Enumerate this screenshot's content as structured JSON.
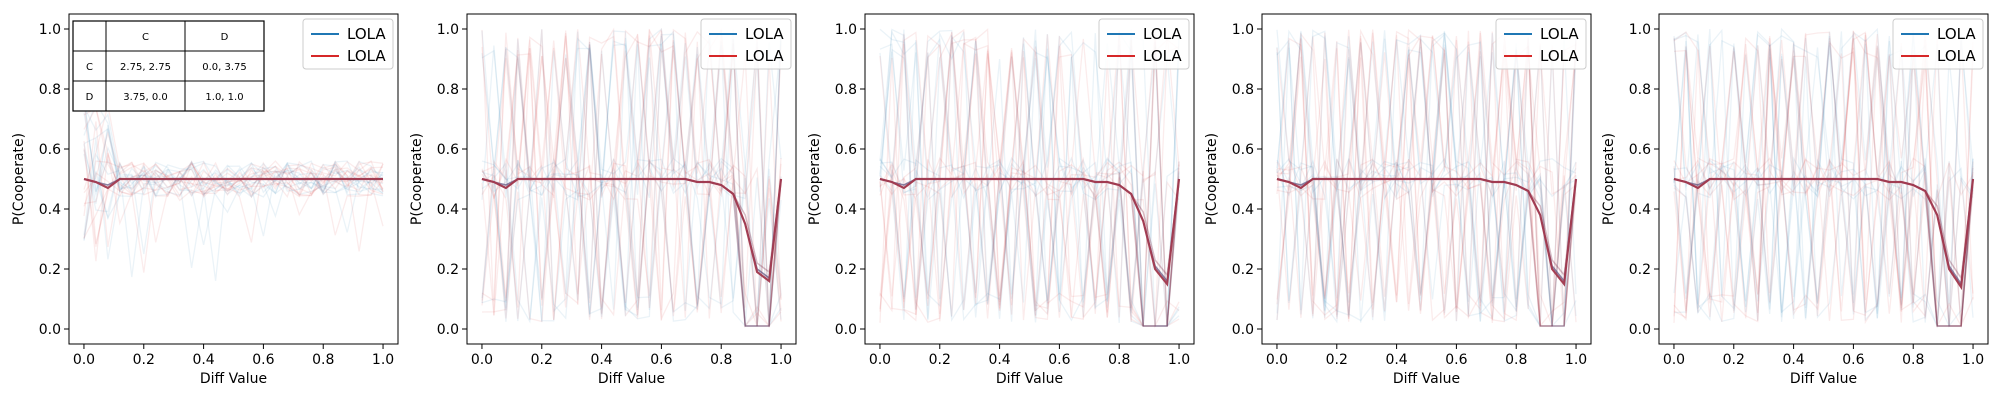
{
  "chart_data": [
    {
      "type": "line",
      "xlabel": "Diff Value",
      "ylabel": "P(Cooperate)",
      "xlim": [
        -0.05,
        1.05
      ],
      "ylim": [
        -0.05,
        1.05
      ],
      "x_ticks": [
        "0.0",
        "0.2",
        "0.4",
        "0.6",
        "0.8",
        "1.0"
      ],
      "y_ticks": [
        "0.0",
        "0.2",
        "0.4",
        "0.6",
        "0.8",
        "1.0"
      ],
      "legend": {
        "placement": "upper-right",
        "entries": [
          "LOLA",
          "LOLA"
        ]
      },
      "x": [
        0.0,
        0.04,
        0.08,
        0.12,
        0.16,
        0.2,
        0.24,
        0.28,
        0.32,
        0.36,
        0.4,
        0.44,
        0.48,
        0.52,
        0.56,
        0.6,
        0.64,
        0.68,
        0.72,
        0.76,
        0.8,
        0.84,
        0.88,
        0.92,
        0.96,
        1.0
      ],
      "series": [
        {
          "name": "LOLA",
          "color": "#1f77b4",
          "values": [
            0.5,
            0.49,
            0.48,
            0.5,
            0.5,
            0.5,
            0.5,
            0.5,
            0.5,
            0.5,
            0.5,
            0.5,
            0.5,
            0.5,
            0.5,
            0.5,
            0.5,
            0.5,
            0.5,
            0.5,
            0.5,
            0.5,
            0.5,
            0.5,
            0.5,
            0.5
          ]
        },
        {
          "name": "LOLA",
          "color": "#d62728",
          "values": [
            0.5,
            0.49,
            0.47,
            0.5,
            0.5,
            0.5,
            0.5,
            0.5,
            0.5,
            0.5,
            0.5,
            0.5,
            0.5,
            0.5,
            0.5,
            0.5,
            0.5,
            0.5,
            0.5,
            0.5,
            0.5,
            0.5,
            0.5,
            0.5,
            0.5,
            0.5
          ]
        }
      ],
      "inset_table": {
        "col_headers": [
          "",
          "C",
          "D"
        ],
        "rows": [
          [
            "C",
            "2.75, 2.75",
            "0.0, 3.75"
          ],
          [
            "D",
            "3.75, 0.0",
            "1.0, 1.0"
          ]
        ]
      }
    },
    {
      "type": "line",
      "xlabel": "Diff Value",
      "ylabel": "P(Cooperate)",
      "xlim": [
        -0.05,
        1.05
      ],
      "ylim": [
        -0.05,
        1.05
      ],
      "x_ticks": [
        "0.0",
        "0.2",
        "0.4",
        "0.6",
        "0.8",
        "1.0"
      ],
      "y_ticks": [
        "0.0",
        "0.2",
        "0.4",
        "0.6",
        "0.8",
        "1.0"
      ],
      "legend": {
        "placement": "upper-right",
        "entries": [
          "LOLA",
          "LOLA"
        ]
      },
      "x": [
        0.0,
        0.04,
        0.08,
        0.12,
        0.16,
        0.2,
        0.24,
        0.28,
        0.32,
        0.36,
        0.4,
        0.44,
        0.48,
        0.52,
        0.56,
        0.6,
        0.64,
        0.68,
        0.72,
        0.76,
        0.8,
        0.84,
        0.88,
        0.92,
        0.96,
        1.0
      ],
      "series": [
        {
          "name": "LOLA",
          "color": "#1f77b4",
          "values": [
            0.5,
            0.49,
            0.48,
            0.5,
            0.5,
            0.5,
            0.5,
            0.5,
            0.5,
            0.5,
            0.5,
            0.5,
            0.5,
            0.5,
            0.5,
            0.5,
            0.5,
            0.5,
            0.49,
            0.49,
            0.48,
            0.45,
            0.35,
            0.2,
            0.17,
            0.5
          ]
        },
        {
          "name": "LOLA",
          "color": "#d62728",
          "values": [
            0.5,
            0.49,
            0.47,
            0.5,
            0.5,
            0.5,
            0.5,
            0.5,
            0.5,
            0.5,
            0.5,
            0.5,
            0.5,
            0.5,
            0.5,
            0.5,
            0.5,
            0.5,
            0.49,
            0.49,
            0.48,
            0.45,
            0.35,
            0.19,
            0.16,
            0.5
          ]
        }
      ]
    },
    {
      "type": "line",
      "xlabel": "Diff Value",
      "ylabel": "P(Cooperate)",
      "xlim": [
        -0.05,
        1.05
      ],
      "ylim": [
        -0.05,
        1.05
      ],
      "x_ticks": [
        "0.0",
        "0.2",
        "0.4",
        "0.6",
        "0.8",
        "1.0"
      ],
      "y_ticks": [
        "0.0",
        "0.2",
        "0.4",
        "0.6",
        "0.8",
        "1.0"
      ],
      "legend": {
        "placement": "upper-right",
        "entries": [
          "LOLA",
          "LOLA"
        ]
      },
      "x": [
        0.0,
        0.04,
        0.08,
        0.12,
        0.16,
        0.2,
        0.24,
        0.28,
        0.32,
        0.36,
        0.4,
        0.44,
        0.48,
        0.52,
        0.56,
        0.6,
        0.64,
        0.68,
        0.72,
        0.76,
        0.8,
        0.84,
        0.88,
        0.92,
        0.96,
        1.0
      ],
      "series": [
        {
          "name": "LOLA",
          "color": "#1f77b4",
          "values": [
            0.5,
            0.49,
            0.48,
            0.5,
            0.5,
            0.5,
            0.5,
            0.5,
            0.5,
            0.5,
            0.5,
            0.5,
            0.5,
            0.5,
            0.5,
            0.5,
            0.5,
            0.5,
            0.49,
            0.49,
            0.48,
            0.45,
            0.36,
            0.21,
            0.16,
            0.5
          ]
        },
        {
          "name": "LOLA",
          "color": "#d62728",
          "values": [
            0.5,
            0.49,
            0.47,
            0.5,
            0.5,
            0.5,
            0.5,
            0.5,
            0.5,
            0.5,
            0.5,
            0.5,
            0.5,
            0.5,
            0.5,
            0.5,
            0.5,
            0.5,
            0.49,
            0.49,
            0.48,
            0.45,
            0.36,
            0.2,
            0.15,
            0.5
          ]
        }
      ]
    },
    {
      "type": "line",
      "xlabel": "Diff Value",
      "ylabel": "P(Cooperate)",
      "xlim": [
        -0.05,
        1.05
      ],
      "ylim": [
        -0.05,
        1.05
      ],
      "x_ticks": [
        "0.0",
        "0.2",
        "0.4",
        "0.6",
        "0.8",
        "1.0"
      ],
      "y_ticks": [
        "0.0",
        "0.2",
        "0.4",
        "0.6",
        "0.8",
        "1.0"
      ],
      "legend": {
        "placement": "upper-right",
        "entries": [
          "LOLA",
          "LOLA"
        ]
      },
      "x": [
        0.0,
        0.04,
        0.08,
        0.12,
        0.16,
        0.2,
        0.24,
        0.28,
        0.32,
        0.36,
        0.4,
        0.44,
        0.48,
        0.52,
        0.56,
        0.6,
        0.64,
        0.68,
        0.72,
        0.76,
        0.8,
        0.84,
        0.88,
        0.92,
        0.96,
        1.0
      ],
      "series": [
        {
          "name": "LOLA",
          "color": "#1f77b4",
          "values": [
            0.5,
            0.49,
            0.48,
            0.5,
            0.5,
            0.5,
            0.5,
            0.5,
            0.5,
            0.5,
            0.5,
            0.5,
            0.5,
            0.5,
            0.5,
            0.5,
            0.5,
            0.5,
            0.49,
            0.49,
            0.48,
            0.46,
            0.38,
            0.21,
            0.16,
            0.5
          ]
        },
        {
          "name": "LOLA",
          "color": "#d62728",
          "values": [
            0.5,
            0.49,
            0.47,
            0.5,
            0.5,
            0.5,
            0.5,
            0.5,
            0.5,
            0.5,
            0.5,
            0.5,
            0.5,
            0.5,
            0.5,
            0.5,
            0.5,
            0.5,
            0.49,
            0.49,
            0.48,
            0.46,
            0.38,
            0.2,
            0.15,
            0.5
          ]
        }
      ]
    },
    {
      "type": "line",
      "xlabel": "Diff Value",
      "ylabel": "P(Cooperate)",
      "xlim": [
        -0.05,
        1.05
      ],
      "ylim": [
        -0.05,
        1.05
      ],
      "x_ticks": [
        "0.0",
        "0.2",
        "0.4",
        "0.6",
        "0.8",
        "1.0"
      ],
      "y_ticks": [
        "0.0",
        "0.2",
        "0.4",
        "0.6",
        "0.8",
        "1.0"
      ],
      "legend": {
        "placement": "upper-right",
        "entries": [
          "LOLA",
          "LOLA"
        ]
      },
      "x": [
        0.0,
        0.04,
        0.08,
        0.12,
        0.16,
        0.2,
        0.24,
        0.28,
        0.32,
        0.36,
        0.4,
        0.44,
        0.48,
        0.52,
        0.56,
        0.6,
        0.64,
        0.68,
        0.72,
        0.76,
        0.8,
        0.84,
        0.88,
        0.92,
        0.96,
        1.0
      ],
      "series": [
        {
          "name": "LOLA",
          "color": "#1f77b4",
          "values": [
            0.5,
            0.49,
            0.48,
            0.5,
            0.5,
            0.5,
            0.5,
            0.5,
            0.5,
            0.5,
            0.5,
            0.5,
            0.5,
            0.5,
            0.5,
            0.5,
            0.5,
            0.5,
            0.49,
            0.49,
            0.48,
            0.46,
            0.38,
            0.21,
            0.15,
            0.5
          ]
        },
        {
          "name": "LOLA",
          "color": "#d62728",
          "values": [
            0.5,
            0.49,
            0.47,
            0.5,
            0.5,
            0.5,
            0.5,
            0.5,
            0.5,
            0.5,
            0.5,
            0.5,
            0.5,
            0.5,
            0.5,
            0.5,
            0.5,
            0.5,
            0.49,
            0.49,
            0.48,
            0.46,
            0.38,
            0.2,
            0.14,
            0.5
          ]
        }
      ]
    }
  ]
}
